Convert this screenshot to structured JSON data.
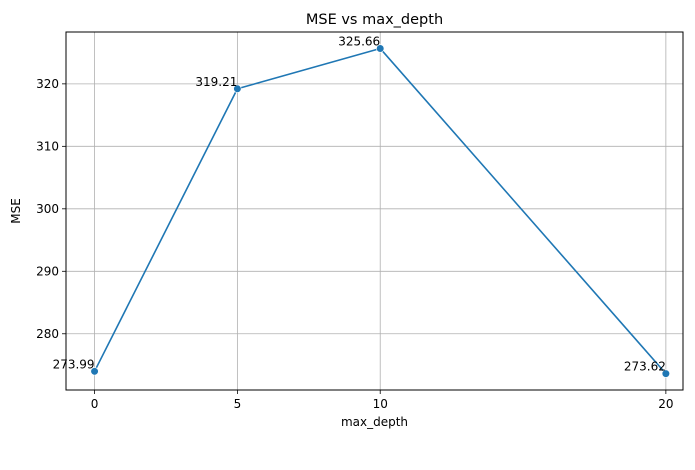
{
  "chart_data": {
    "type": "line",
    "title": "MSE vs max_depth",
    "xlabel": "max_depth",
    "ylabel": "MSE",
    "x": [
      0,
      5,
      10,
      20
    ],
    "series": [
      {
        "values": [
          273.99,
          319.21,
          325.66,
          273.62
        ],
        "color": "#1f77b4"
      }
    ],
    "data_labels": [
      "273.99",
      "319.21",
      "325.66",
      "273.62"
    ],
    "x_ticks": [
      0,
      5,
      10,
      20
    ],
    "y_ticks": [
      280,
      290,
      300,
      310,
      320
    ],
    "xlim": [
      -1,
      20.6
    ],
    "ylim": [
      271.0,
      328.3
    ],
    "grid": true,
    "marker": "circle"
  }
}
